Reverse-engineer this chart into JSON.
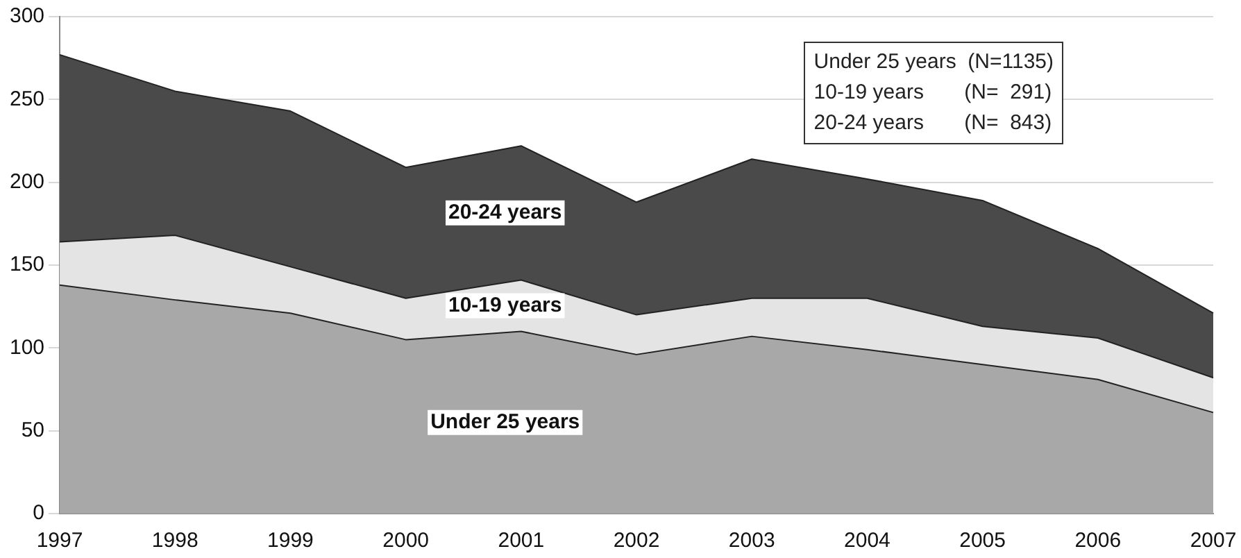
{
  "chart_data": {
    "type": "area",
    "stacked": true,
    "categories": [
      "1997",
      "1998",
      "1999",
      "2000",
      "2001",
      "2002",
      "2003",
      "2004",
      "2005",
      "2006",
      "2007"
    ],
    "series": [
      {
        "name": "Under 25 years",
        "color": "#a8a8a8",
        "values": [
          138,
          129,
          121,
          105,
          110,
          96,
          107,
          99,
          90,
          81,
          61
        ]
      },
      {
        "name": "10-19 years",
        "color": "#e4e4e4",
        "values": [
          26,
          39,
          28,
          25,
          31,
          24,
          23,
          31,
          23,
          25,
          21
        ]
      },
      {
        "name": "20-24 years",
        "color": "#4a4a4a",
        "values": [
          113,
          87,
          94,
          79,
          81,
          68,
          84,
          72,
          76,
          54,
          39
        ]
      }
    ],
    "ylim": [
      0,
      300
    ],
    "yticks": [
      0,
      50,
      100,
      150,
      200,
      250,
      300
    ],
    "grid": "y",
    "legend": false,
    "annotations": [
      "Under 25 years  (N=1135)",
      "10-19 years       (N=  291)",
      "20-24 years       (N=  843)"
    ]
  }
}
